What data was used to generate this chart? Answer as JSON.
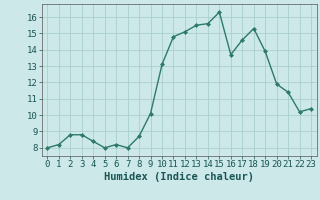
{
  "x": [
    0,
    1,
    2,
    3,
    4,
    5,
    6,
    7,
    8,
    9,
    10,
    11,
    12,
    13,
    14,
    15,
    16,
    17,
    18,
    19,
    20,
    21,
    22,
    23
  ],
  "y": [
    8.0,
    8.2,
    8.8,
    8.8,
    8.4,
    8.0,
    8.2,
    8.0,
    8.7,
    10.1,
    13.1,
    14.8,
    15.1,
    15.5,
    15.6,
    16.3,
    13.7,
    14.6,
    15.3,
    13.9,
    11.9,
    11.4,
    10.2,
    10.4
  ],
  "xlabel": "Humidex (Indice chaleur)",
  "xlim": [
    -0.5,
    23.5
  ],
  "ylim": [
    7.5,
    16.8
  ],
  "yticks": [
    8,
    9,
    10,
    11,
    12,
    13,
    14,
    15,
    16
  ],
  "xticks": [
    0,
    1,
    2,
    3,
    4,
    5,
    6,
    7,
    8,
    9,
    10,
    11,
    12,
    13,
    14,
    15,
    16,
    17,
    18,
    19,
    20,
    21,
    22,
    23
  ],
  "line_color": "#2d7a68",
  "marker": "D",
  "marker_size": 2.0,
  "background_color": "#cce8e8",
  "grid_color": "#aacece",
  "xlabel_fontsize": 7.5,
  "tick_fontsize": 6.5,
  "linewidth": 1.0
}
